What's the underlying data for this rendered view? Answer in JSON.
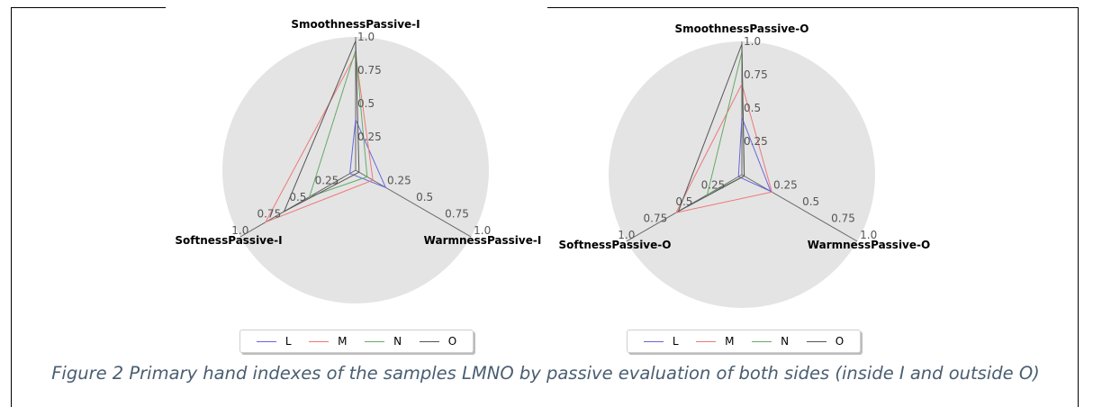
{
  "caption": "Figure 2 Primary hand indexes of the samples LMNO by passive evaluation of both sides  (inside I and outside O)",
  "colors": {
    "L": "#6666dd",
    "M": "#ee7777",
    "N": "#66aa66",
    "O": "#555555",
    "background": "#e4e4e4",
    "axis": "#666666"
  },
  "chart_data": [
    {
      "type": "radar",
      "axes": [
        "SmoothnessPassive-I",
        "WarmnessPassive-I",
        "SoftnessPassive-I"
      ],
      "ticks": [
        "0.25",
        "0.5",
        "0.75",
        "1.0"
      ],
      "range": [
        0,
        1
      ],
      "legend_position": "bottom",
      "series": [
        {
          "name": "L",
          "values": [
            0.38,
            0.26,
            0.05
          ]
        },
        {
          "name": "M",
          "values": [
            0.87,
            0.15,
            0.78
          ]
        },
        {
          "name": "N",
          "values": [
            0.9,
            0.1,
            0.4
          ]
        },
        {
          "name": "O",
          "values": [
            0.97,
            0.03,
            0.62
          ]
        }
      ]
    },
    {
      "type": "radar",
      "axes": [
        "SmoothnessPassive-O",
        "WarmnessPassive-O",
        "SoftnessPassive-O"
      ],
      "ticks": [
        "0.25",
        "0.5",
        "0.75",
        "1.0"
      ],
      "range": [
        0,
        1
      ],
      "legend_position": "bottom",
      "series": [
        {
          "name": "L",
          "values": [
            0.43,
            0.25,
            0.03
          ]
        },
        {
          "name": "M",
          "values": [
            0.68,
            0.26,
            0.57
          ]
        },
        {
          "name": "N",
          "values": [
            0.92,
            0.02,
            0.3
          ]
        },
        {
          "name": "O",
          "values": [
            0.98,
            0.02,
            0.55
          ]
        }
      ]
    }
  ]
}
